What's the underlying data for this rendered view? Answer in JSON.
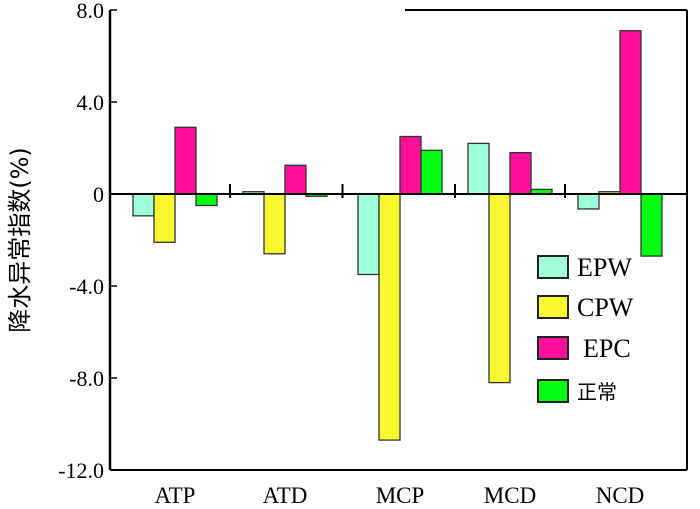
{
  "chart_data": {
    "type": "bar",
    "title": "",
    "xlabel": "",
    "ylabel": "降水异常指数(%)",
    "ylim": [
      -12,
      8
    ],
    "yticks": [
      8,
      4,
      0,
      -4,
      -8,
      -12
    ],
    "ytick_labels": [
      "8.0",
      "4.0",
      "0",
      "-4.0",
      "-8.0",
      "-12.0"
    ],
    "categories": [
      "ATP",
      "ATD",
      "MCP",
      "MCD",
      "NCD"
    ],
    "series": [
      {
        "name": "EPW",
        "color": "#a0ffd8",
        "values": [
          -0.95,
          0.1,
          -3.5,
          2.2,
          -0.65
        ]
      },
      {
        "name": "CPW",
        "color": "#f8f830",
        "values": [
          -2.1,
          -2.6,
          -10.7,
          -8.2,
          0.1
        ]
      },
      {
        "name": "EPC",
        "color": "#ff1099",
        "values": [
          2.9,
          1.25,
          2.5,
          1.8,
          7.1
        ]
      },
      {
        "name": "正常",
        "color": "#00ff10",
        "values": [
          -0.5,
          -0.1,
          1.9,
          0.2,
          -2.7
        ]
      }
    ],
    "legend_position": "lower-right",
    "grid": false
  }
}
